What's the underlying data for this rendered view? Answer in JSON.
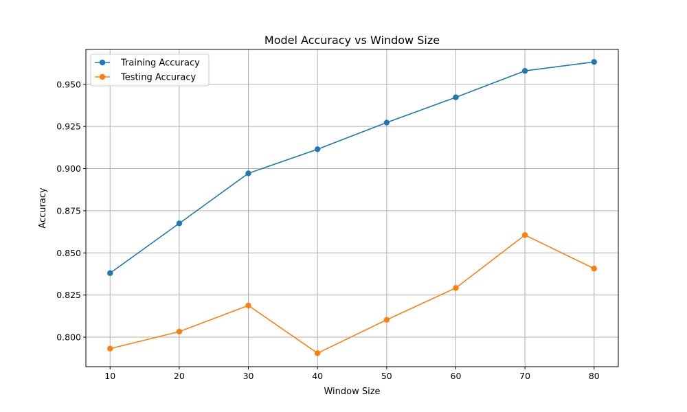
{
  "chart_data": {
    "type": "line",
    "title": "Model Accuracy vs Window Size",
    "xlabel": "Window Size",
    "ylabel": "Accuracy",
    "x": [
      10,
      20,
      30,
      40,
      50,
      60,
      70,
      80
    ],
    "xticks": [
      "10",
      "20",
      "30",
      "40",
      "50",
      "60",
      "70",
      "80"
    ],
    "yticks": [
      "0.800",
      "0.825",
      "0.850",
      "0.875",
      "0.900",
      "0.925",
      "0.950"
    ],
    "xlim": [
      6.5,
      83.5
    ],
    "ylim": [
      0.7825,
      0.9707
    ],
    "grid": true,
    "legend_position": "top-left",
    "series": [
      {
        "name": "Training Accuracy",
        "color": "#1f77b4",
        "values": [
          0.838,
          0.8675,
          0.8972,
          0.9115,
          0.9273,
          0.9423,
          0.958,
          0.9633
        ]
      },
      {
        "name": "Testing Accuracy",
        "color": "#ff7f0e",
        "values": [
          0.7932,
          0.8033,
          0.8188,
          0.7905,
          0.8103,
          0.8292,
          0.8606,
          0.8407
        ]
      }
    ]
  }
}
